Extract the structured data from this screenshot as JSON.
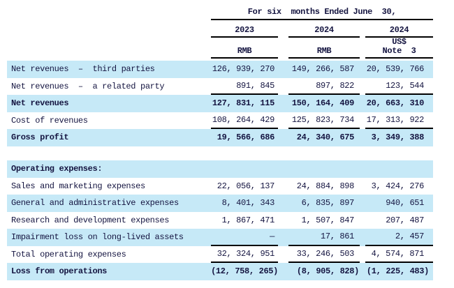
{
  "colors": {
    "highlight": "#c6e9f7",
    "rule": "#000000",
    "text": "#141440"
  },
  "header": {
    "title": "For six  months Ended June  30,",
    "years": [
      "2023",
      "2024",
      "2024"
    ],
    "units": {
      "col1": "RMB",
      "col2": "RMB",
      "col3_line1": "US$",
      "col3_line2": "Note  3"
    }
  },
  "rows": [
    {
      "label": "Net revenues  –  third parties",
      "c1": "126, 939, 270",
      "c2": "149, 266, 587",
      "c3": "20, 539, 766"
    },
    {
      "label": "Net revenues  –  a related party",
      "c1": "891, 845",
      "c2": "897, 822",
      "c3": "123, 544"
    },
    {
      "label": "Net revenues",
      "c1": "127, 831, 115",
      "c2": "150, 164, 409",
      "c3": "20, 663, 310"
    },
    {
      "label": "Cost of revenues",
      "c1": "108, 264, 429",
      "c2": "125, 823, 734",
      "c3": "17, 313, 922"
    },
    {
      "label": "Gross profit",
      "c1": "19, 566, 686",
      "c2": "24, 340, 675",
      "c3": "3, 349, 388"
    },
    {
      "label": "Operating expenses:",
      "c1": "",
      "c2": "",
      "c3": ""
    },
    {
      "label": "Sales and marketing expenses",
      "c1": "22, 056, 137",
      "c2": "24, 884, 898",
      "c3": "3, 424, 276"
    },
    {
      "label": "General and administrative expenses",
      "c1": "8, 401, 343",
      "c2": "6, 835, 897",
      "c3": "940, 651"
    },
    {
      "label": "Research and development expenses",
      "c1": "1, 867, 471",
      "c2": "1, 507, 847",
      "c3": "207, 487"
    },
    {
      "label": "Impairment loss on long-lived assets",
      "c1": "—",
      "c2": "17, 861",
      "c3": "2, 457"
    },
    {
      "label": "Total operating expenses",
      "c1": "32, 324, 951",
      "c2": "33, 246, 503",
      "c3": "4, 574, 871"
    },
    {
      "label": "Loss from operations",
      "c1": "(12, 758, 265)",
      "c2": "(8, 905, 828)",
      "c3": "(1, 225, 483)"
    }
  ]
}
